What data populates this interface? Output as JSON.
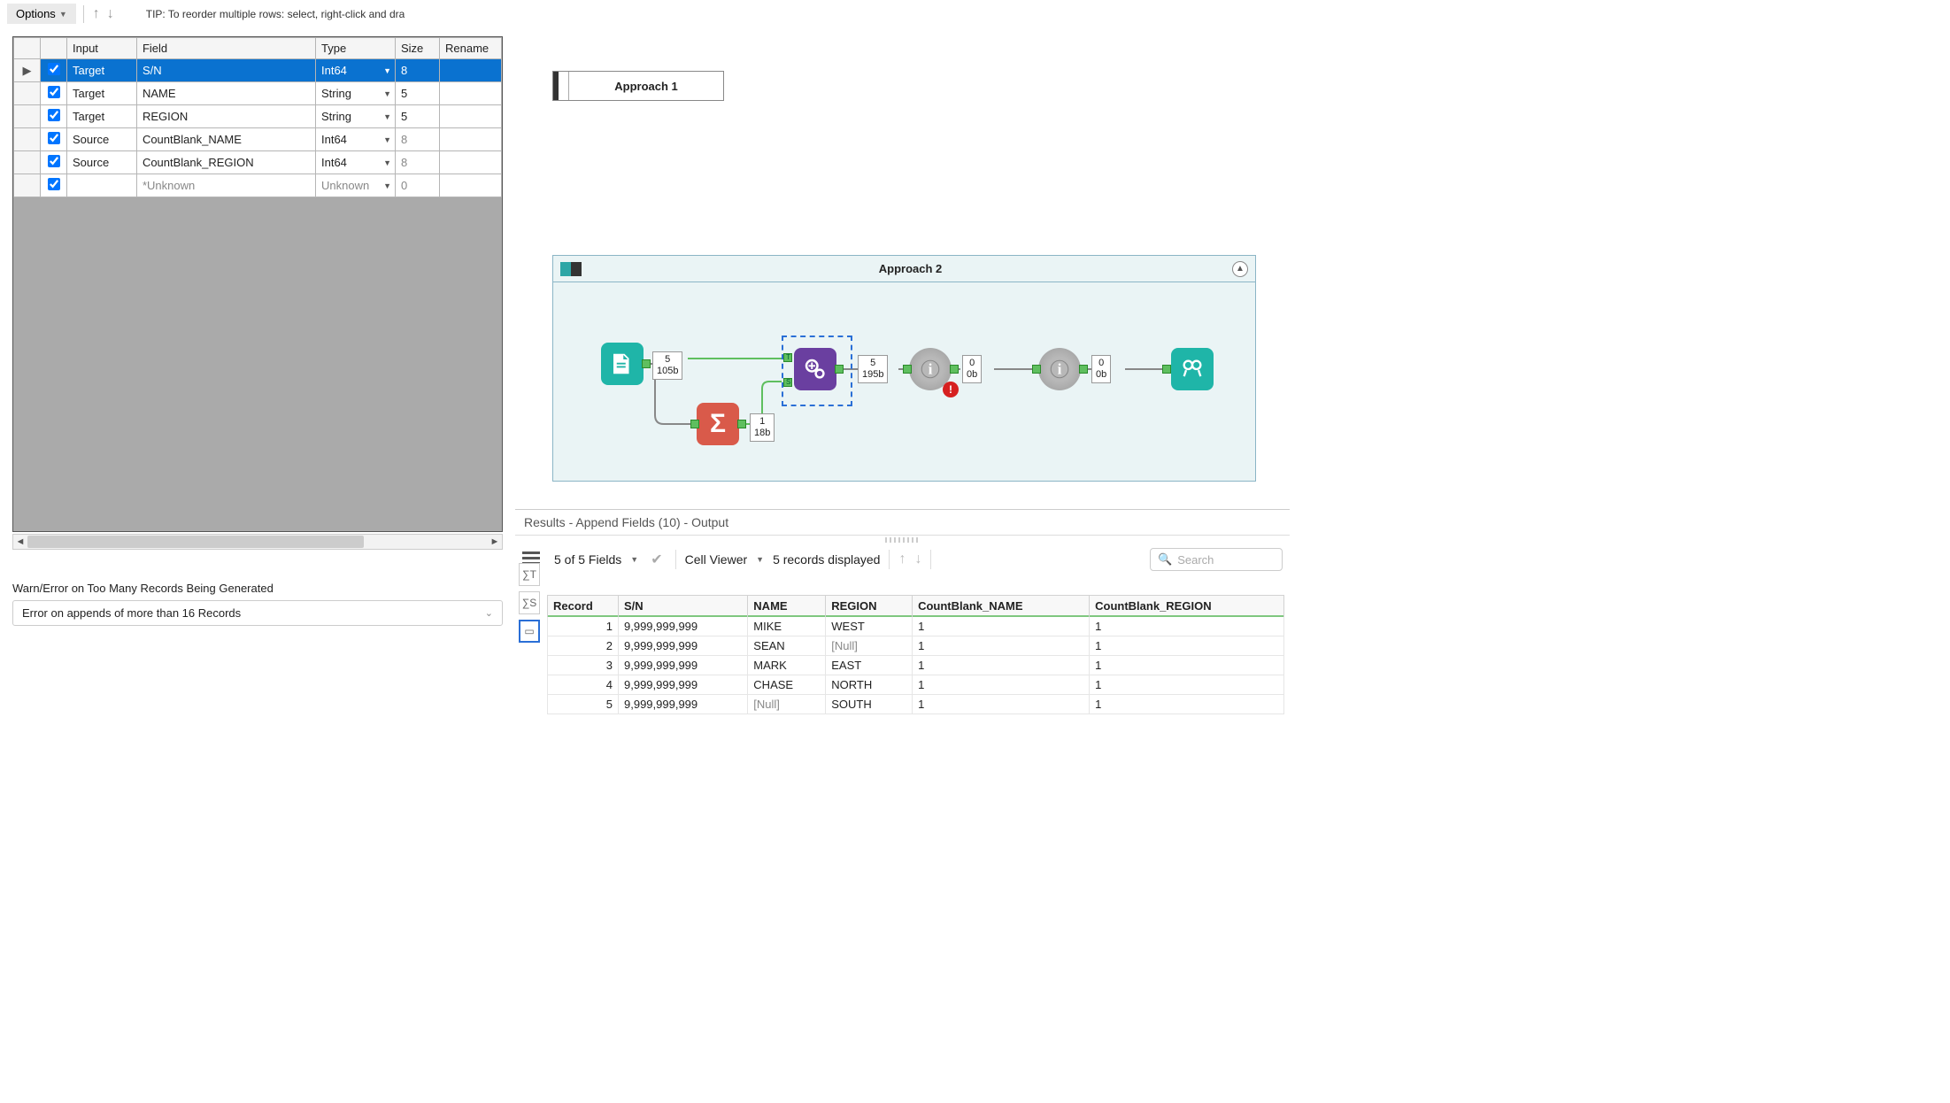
{
  "toolbar": {
    "options_label": "Options",
    "tip": "TIP: To reorder multiple rows: select, right-click and dra"
  },
  "config_grid": {
    "headers": {
      "input": "Input",
      "field": "Field",
      "type": "Type",
      "size": "Size",
      "rename": "Rename"
    },
    "rows": [
      {
        "sel": true,
        "checked": true,
        "input": "Target",
        "field": "S/N",
        "type": "Int64",
        "size": "8",
        "rename": ""
      },
      {
        "sel": false,
        "checked": true,
        "input": "Target",
        "field": "NAME",
        "type": "String",
        "size": "5",
        "rename": ""
      },
      {
        "sel": false,
        "checked": true,
        "input": "Target",
        "field": "REGION",
        "type": "String",
        "size": "5",
        "rename": ""
      },
      {
        "sel": false,
        "checked": true,
        "input": "Source",
        "field": "CountBlank_NAME",
        "type": "Int64",
        "size": "8",
        "rename": "",
        "dim_size": true
      },
      {
        "sel": false,
        "checked": true,
        "input": "Source",
        "field": "CountBlank_REGION",
        "type": "Int64",
        "size": "8",
        "rename": "",
        "dim_size": true
      },
      {
        "sel": false,
        "checked": true,
        "input": "",
        "field": "*Unknown",
        "type": "Unknown",
        "size": "0",
        "rename": "",
        "dim_row": true
      }
    ]
  },
  "warn": {
    "label": "Warn/Error on Too Many Records Being Generated",
    "value": "Error on appends of more than 16 Records"
  },
  "canvas": {
    "approach1": "Approach 1",
    "approach2": "Approach 2",
    "meta": {
      "m1": "5\n105b",
      "m2": "1\n18b",
      "m3": "5\n195b",
      "m4": "0\n0b",
      "m5": "0\n0b"
    }
  },
  "results": {
    "title": "Results - Append Fields (10) - Output",
    "fields_summary": "5 of 5 Fields",
    "cell_viewer": "Cell Viewer",
    "records_displayed": "5 records displayed",
    "search_placeholder": "Search",
    "columns": [
      "Record",
      "S/N",
      "NAME",
      "REGION",
      "CountBlank_NAME",
      "CountBlank_REGION"
    ],
    "rows": [
      {
        "r": "1",
        "sn": "9,999,999,999",
        "name": "MIKE",
        "region": "WEST",
        "c1": "1",
        "c2": "1"
      },
      {
        "r": "2",
        "sn": "9,999,999,999",
        "name": "SEAN",
        "region": "[Null]",
        "region_null": true,
        "c1": "1",
        "c2": "1"
      },
      {
        "r": "3",
        "sn": "9,999,999,999",
        "name": "MARK",
        "region": "EAST",
        "c1": "1",
        "c2": "1"
      },
      {
        "r": "4",
        "sn": "9,999,999,999",
        "name": "CHASE",
        "region": "NORTH",
        "c1": "1",
        "c2": "1"
      },
      {
        "r": "5",
        "sn": "9,999,999,999",
        "name": "[Null]",
        "name_null": true,
        "region": "SOUTH",
        "c1": "1",
        "c2": "1"
      }
    ]
  },
  "colors": {
    "selection_blue": "#0a72d0",
    "teal": "#1fb5a8",
    "red_tool": "#d95a4a",
    "purple": "#6a3fa0",
    "wire_green": "#5fbf5f",
    "error_red": "#d62020",
    "container2_bg": "#eaf4f5",
    "container2_border": "#8bb5c6"
  }
}
